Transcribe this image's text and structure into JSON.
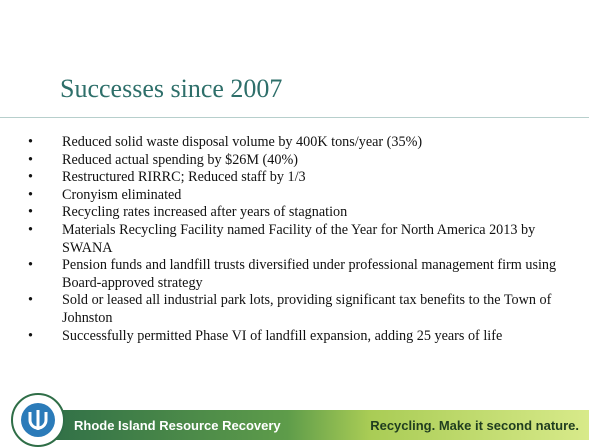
{
  "slide": {
    "title": "Successes since 2007",
    "bullets": [
      "Reduced solid waste disposal volume by 400K tons/year (35%)",
      "Reduced actual spending by $26M (40%)",
      "Restructured RIRRC; Reduced staff by 1/3",
      "Cronyism eliminated",
      "Recycling rates increased after years of stagnation",
      "Materials Recycling Facility named Facility of the Year for North America 2013 by SWANA",
      "Pension funds and landfill trusts diversified under professional management firm using Board-approved strategy",
      "Sold or leased all industrial park lots, providing significant tax benefits to the Town of Johnston",
      "Successfully permitted Phase VI of landfill expansion, adding 25 years of life"
    ],
    "footer": {
      "organization": "Rhode Island Resource Recovery",
      "slogan": "Recycling. Make it second nature."
    }
  }
}
